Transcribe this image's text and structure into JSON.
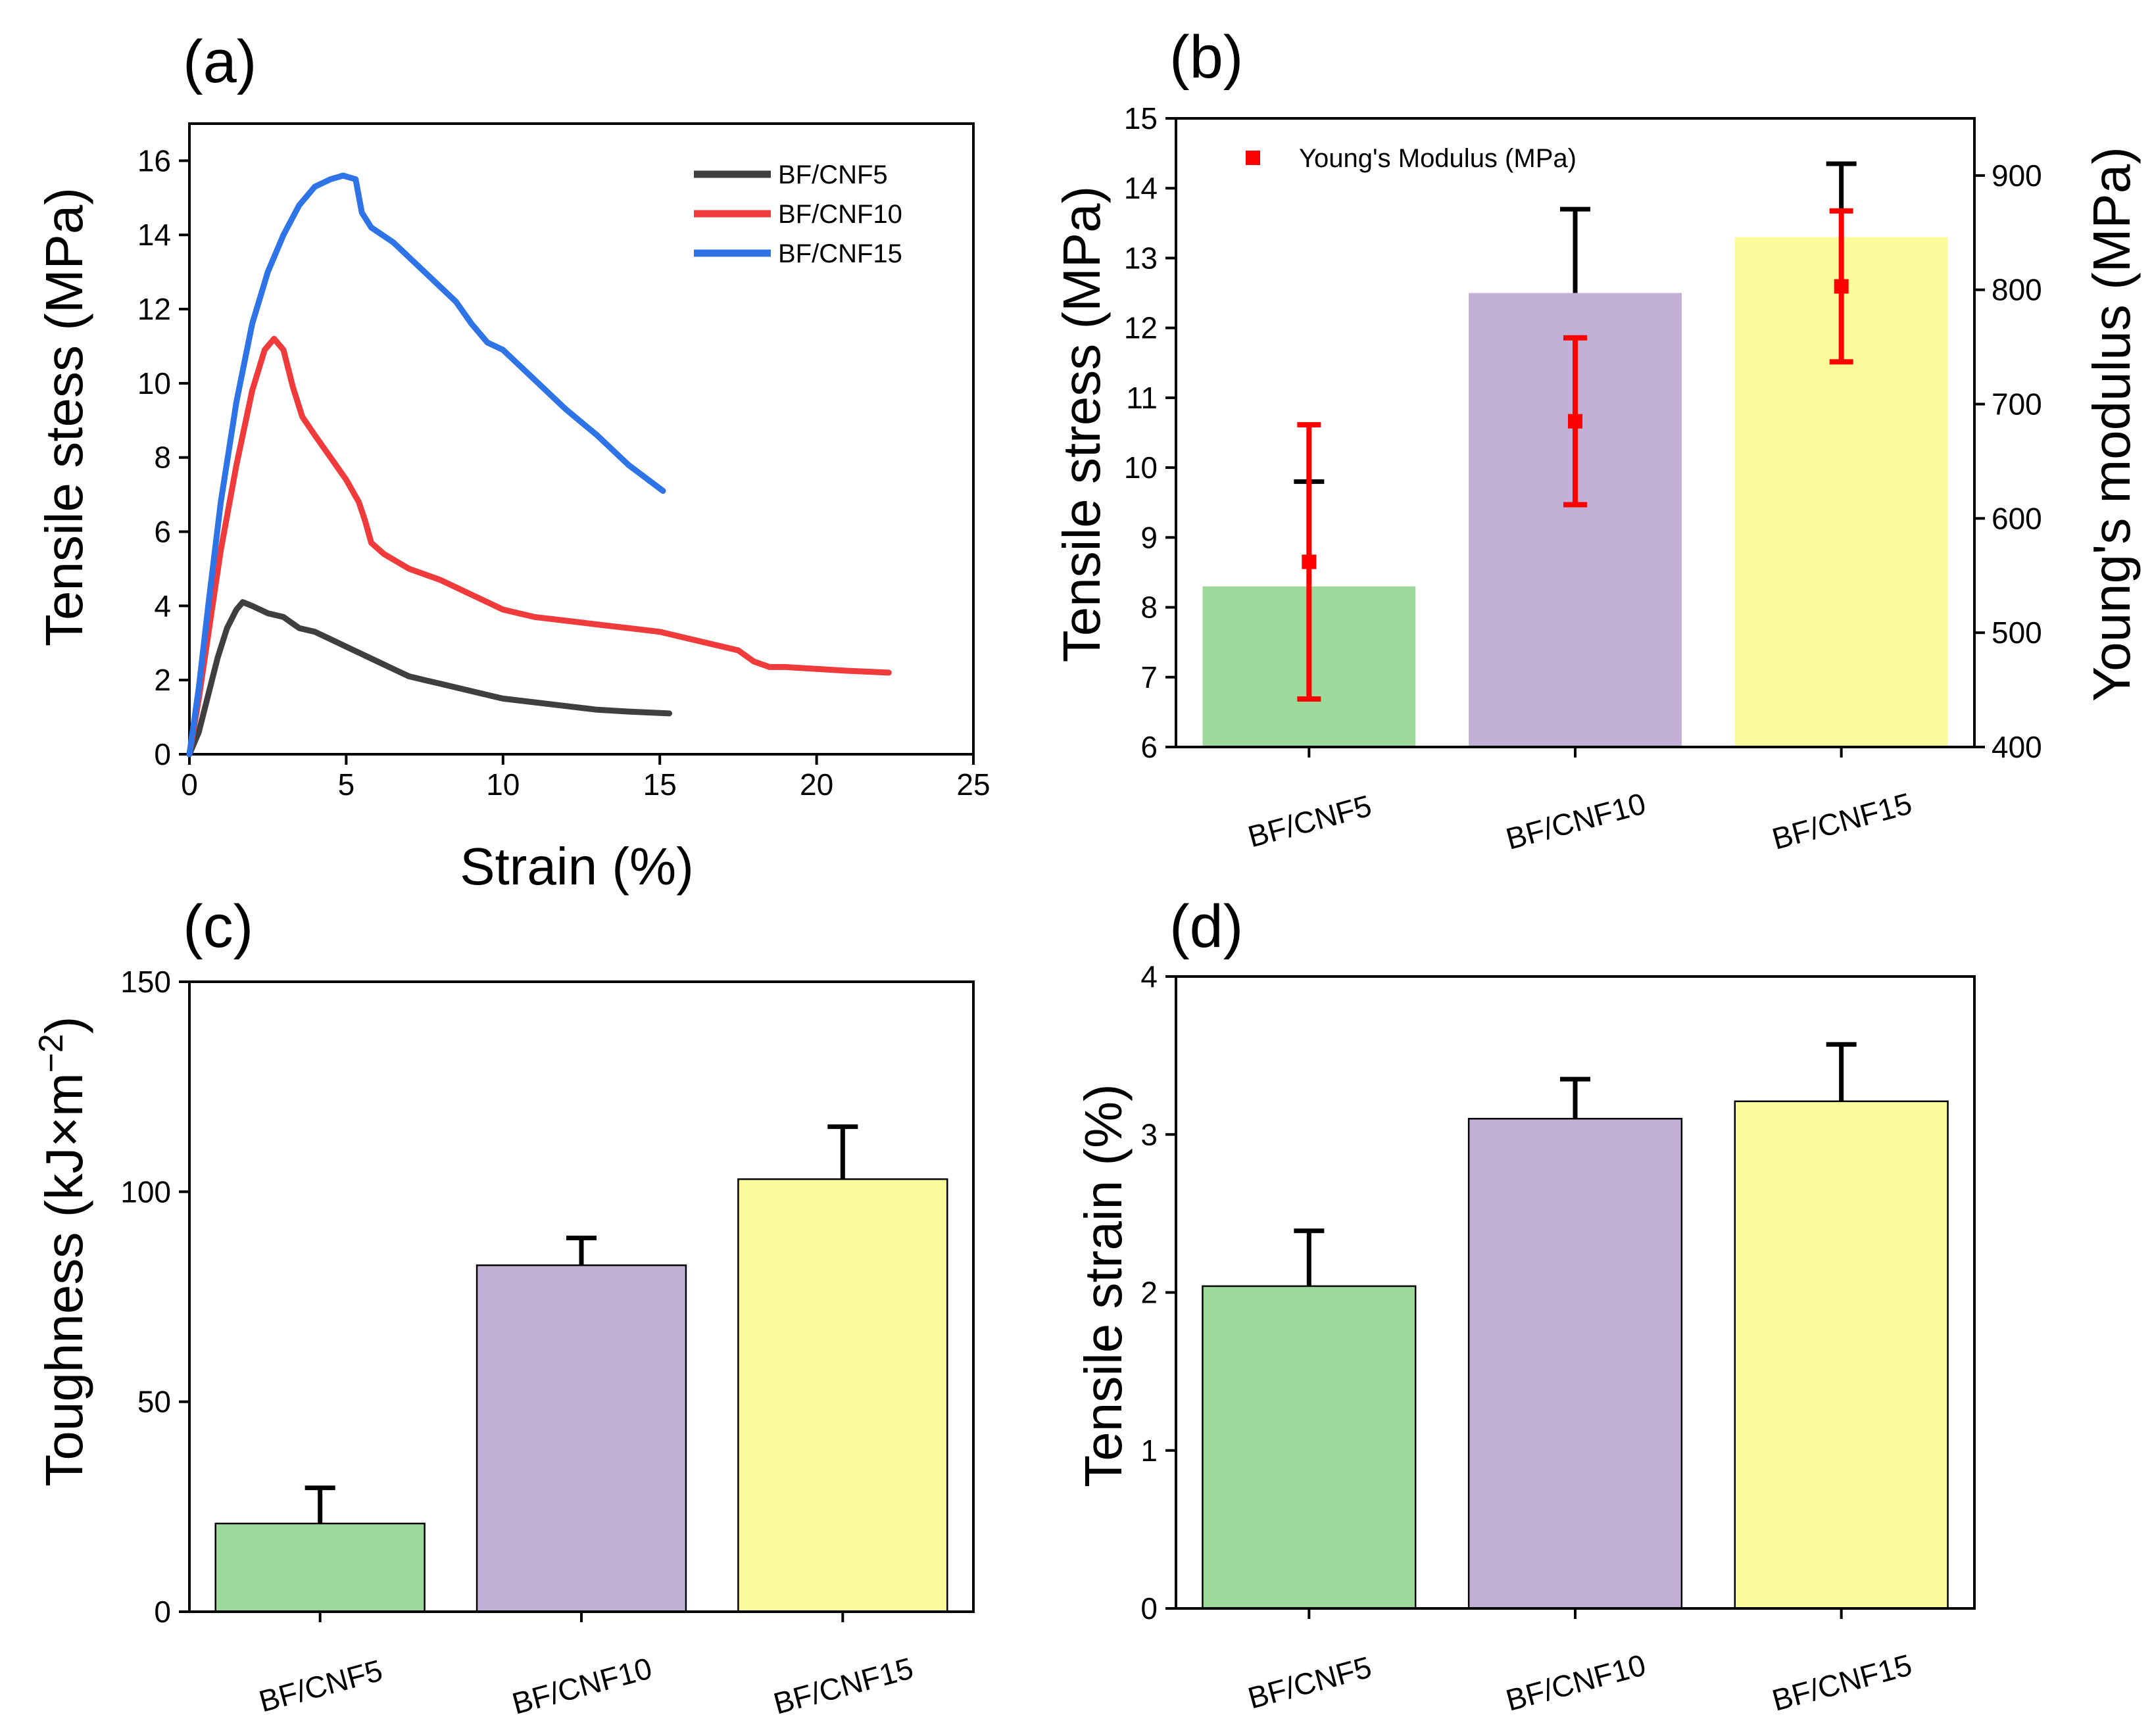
{
  "colors": {
    "black_line": "#3f3f3f",
    "red_line": "#ef3b3b",
    "blue_line": "#2f74e6",
    "bar_green": "#9ed99c",
    "bar_purple": "#c2b0d6",
    "bar_yellow": "#fbfb9b",
    "modulus_red": "#ff0000"
  },
  "chart_data": [
    {
      "panel": "(a)",
      "type": "line",
      "xlabel": "Strain (%)",
      "ylabel": "Tensile stess (MPa)",
      "xlim": [
        0,
        25
      ],
      "ylim": [
        0,
        17
      ],
      "xticks": [
        "0",
        "5",
        "10",
        "15",
        "20",
        "25"
      ],
      "yticks": [
        "0",
        "2",
        "4",
        "6",
        "8",
        "10",
        "12",
        "14",
        "16"
      ],
      "series": [
        {
          "name": "BF/CNF5",
          "color": "#3f3f3f",
          "points": [
            [
              0,
              0
            ],
            [
              0.3,
              0.6
            ],
            [
              0.6,
              1.6
            ],
            [
              0.9,
              2.6
            ],
            [
              1.2,
              3.4
            ],
            [
              1.5,
              3.9
            ],
            [
              1.7,
              4.1
            ],
            [
              2.0,
              4.0
            ],
            [
              2.5,
              3.8
            ],
            [
              3.0,
              3.7
            ],
            [
              3.5,
              3.4
            ],
            [
              4.0,
              3.3
            ],
            [
              4.5,
              3.1
            ],
            [
              5.0,
              2.9
            ],
            [
              5.5,
              2.7
            ],
            [
              6.0,
              2.5
            ],
            [
              6.5,
              2.3
            ],
            [
              7.0,
              2.1
            ],
            [
              7.5,
              2.0
            ],
            [
              8.0,
              1.9
            ],
            [
              9.0,
              1.7
            ],
            [
              10.0,
              1.5
            ],
            [
              11.0,
              1.4
            ],
            [
              12.0,
              1.3
            ],
            [
              13.0,
              1.2
            ],
            [
              14.0,
              1.15
            ],
            [
              15.3,
              1.1
            ]
          ]
        },
        {
          "name": "BF/CNF10",
          "color": "#ef3b3b",
          "points": [
            [
              0,
              0
            ],
            [
              0.3,
              1.5
            ],
            [
              0.7,
              3.8
            ],
            [
              1.0,
              5.5
            ],
            [
              1.5,
              7.8
            ],
            [
              2.0,
              9.8
            ],
            [
              2.4,
              10.9
            ],
            [
              2.7,
              11.2
            ],
            [
              3.0,
              10.9
            ],
            [
              3.3,
              9.9
            ],
            [
              3.6,
              9.1
            ],
            [
              4.0,
              8.6
            ],
            [
              4.5,
              8.0
            ],
            [
              5.0,
              7.4
            ],
            [
              5.4,
              6.8
            ],
            [
              5.6,
              6.3
            ],
            [
              5.8,
              5.7
            ],
            [
              6.2,
              5.4
            ],
            [
              7.0,
              5.0
            ],
            [
              8.0,
              4.7
            ],
            [
              9.0,
              4.3
            ],
            [
              10.0,
              3.9
            ],
            [
              11.0,
              3.7
            ],
            [
              12.0,
              3.6
            ],
            [
              13.0,
              3.5
            ],
            [
              14.0,
              3.4
            ],
            [
              15.0,
              3.3
            ],
            [
              16.0,
              3.1
            ],
            [
              17.0,
              2.9
            ],
            [
              17.5,
              2.8
            ],
            [
              18.0,
              2.5
            ],
            [
              18.5,
              2.35
            ],
            [
              19.0,
              2.35
            ],
            [
              20.0,
              2.3
            ],
            [
              21.0,
              2.25
            ],
            [
              22.3,
              2.2
            ]
          ]
        },
        {
          "name": "BF/CNF15",
          "color": "#2f74e6",
          "points": [
            [
              0,
              0
            ],
            [
              0.3,
              1.8
            ],
            [
              0.6,
              4.0
            ],
            [
              1.0,
              6.8
            ],
            [
              1.5,
              9.5
            ],
            [
              2.0,
              11.6
            ],
            [
              2.5,
              13.0
            ],
            [
              3.0,
              14.0
            ],
            [
              3.5,
              14.8
            ],
            [
              4.0,
              15.3
            ],
            [
              4.5,
              15.5
            ],
            [
              4.9,
              15.6
            ],
            [
              5.3,
              15.5
            ],
            [
              5.5,
              14.6
            ],
            [
              5.8,
              14.2
            ],
            [
              6.5,
              13.8
            ],
            [
              7.0,
              13.4
            ],
            [
              8.0,
              12.6
            ],
            [
              8.5,
              12.2
            ],
            [
              9.0,
              11.6
            ],
            [
              9.5,
              11.1
            ],
            [
              10.0,
              10.9
            ],
            [
              11.0,
              10.1
            ],
            [
              12.0,
              9.3
            ],
            [
              13.0,
              8.6
            ],
            [
              14.0,
              7.8
            ],
            [
              15.1,
              7.1
            ]
          ]
        }
      ],
      "legend": [
        "BF/CNF5",
        "BF/CNF10",
        "BF/CNF15"
      ]
    },
    {
      "panel": "(b)",
      "type": "bar",
      "categories": [
        "BF/CNF5",
        "BF/CNF10",
        "BF/CNF15"
      ],
      "ylabel": "Tensile stress (MPa)",
      "ylim": [
        6,
        15
      ],
      "yticks": [
        "6",
        "7",
        "8",
        "9",
        "10",
        "11",
        "12",
        "13",
        "14",
        "15"
      ],
      "values": [
        8.3,
        12.5,
        13.3
      ],
      "errors": [
        1.5,
        1.2,
        1.05
      ],
      "y2label": "Young's modulus (MPa)",
      "y2lim": [
        400,
        950
      ],
      "y2ticks": [
        "400",
        "500",
        "600",
        "700",
        "800",
        "900"
      ],
      "modulus": {
        "name": "Young's Modulus (MPa)",
        "values": [
          562,
          685,
          803
        ],
        "errors": [
          120,
          73,
          66
        ]
      }
    },
    {
      "panel": "(c)",
      "type": "bar",
      "categories": [
        "BF/CNF5",
        "BF/CNF10",
        "BF/CNF15"
      ],
      "ylabel_main": "Toughness (kJ×m",
      "ylabel_sup": "−2",
      "ylabel_end": ")",
      "ylim": [
        0,
        150
      ],
      "yticks": [
        "0",
        "50",
        "100",
        "150"
      ],
      "values": [
        21,
        82.5,
        103
      ],
      "errors": [
        8.5,
        6.5,
        12.5
      ]
    },
    {
      "panel": "(d)",
      "type": "bar",
      "categories": [
        "BF/CNF5",
        "BF/CNF10",
        "BF/CNF15"
      ],
      "ylabel": "Tensile strain (%)",
      "ylim": [
        0,
        4
      ],
      "yticks": [
        "0",
        "1",
        "2",
        "3",
        "4"
      ],
      "values": [
        2.04,
        3.1,
        3.21
      ],
      "errors": [
        0.35,
        0.25,
        0.36
      ]
    }
  ]
}
